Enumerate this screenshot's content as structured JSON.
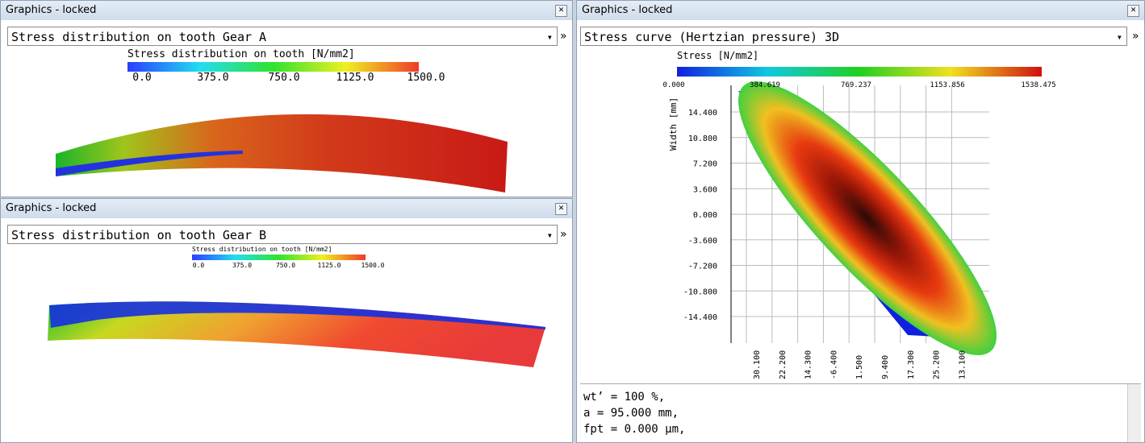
{
  "panels": [
    {
      "title": "Graphics - locked",
      "dropdown": "Stress distribution on tooth Gear A",
      "legend": {
        "title": "Stress distribution on tooth [N/mm2]",
        "labels": [
          "0.0",
          "375.0",
          "750.0",
          "1125.0",
          "1500.0"
        ]
      }
    },
    {
      "title": "Graphics - locked",
      "dropdown": "Stress distribution on tooth Gear B",
      "legend": {
        "title": "Stress distribution on tooth [N/mm2]",
        "labels": [
          "0.0",
          "375.0",
          "750.0",
          "1125.0",
          "1500.0"
        ]
      }
    },
    {
      "title": "Graphics - locked",
      "dropdown": "Stress curve (Hertzian pressure) 3D",
      "legend": {
        "title": "Stress [N/mm2]",
        "labels": [
          "0.000",
          "384.619",
          "769.237",
          "1153.856",
          "1538.475"
        ]
      },
      "y_label": "Width [mm]",
      "y_ticks": [
        "14.400",
        "10.800",
        "7.200",
        "3.600",
        "0.000",
        "-3.600",
        "-7.200",
        "-10.800",
        "-14.400"
      ],
      "x_ticks": [
        "30.100",
        "22.200",
        "14.300",
        "-6.400",
        "1.500",
        "9.400",
        "17.300",
        "25.200",
        "13.100"
      ],
      "text_lines": [
        "wt’ = 100 %,",
        "a = 95.000 mm,",
        "fpt = 0.000 µm,"
      ]
    }
  ]
}
